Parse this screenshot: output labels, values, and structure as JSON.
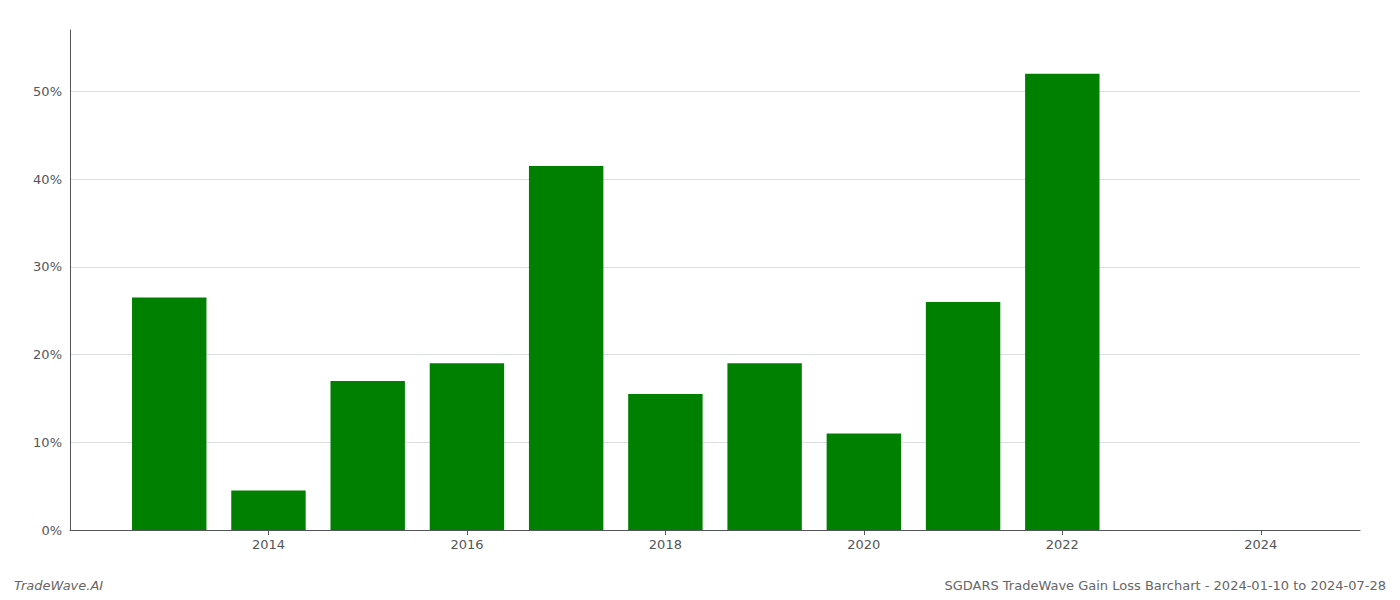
{
  "chart_data": {
    "type": "bar",
    "x": [
      2013,
      2014,
      2015,
      2016,
      2017,
      2018,
      2019,
      2020,
      2021,
      2022,
      2023
    ],
    "values": [
      0.265,
      0.045,
      0.17,
      0.19,
      0.415,
      0.155,
      0.19,
      0.11,
      0.26,
      0.52,
      0.0
    ],
    "color": "#008000",
    "xlim": [
      2012.0,
      2025.0
    ],
    "xticks": [
      2014,
      2016,
      2018,
      2020,
      2022,
      2024
    ],
    "ylim": [
      0,
      0.57
    ],
    "yticks": [
      {
        "value": 0.0,
        "label": "0%"
      },
      {
        "value": 0.1,
        "label": "10%"
      },
      {
        "value": 0.2,
        "label": "20%"
      },
      {
        "value": 0.3,
        "label": "30%"
      },
      {
        "value": 0.4,
        "label": "40%"
      },
      {
        "value": 0.5,
        "label": "50%"
      }
    ],
    "grid": true,
    "annotations": [
      "TradeWave.AI",
      "SGDARS TradeWave Gain Loss Barchart - 2024-01-10 to 2024-07-28"
    ]
  }
}
